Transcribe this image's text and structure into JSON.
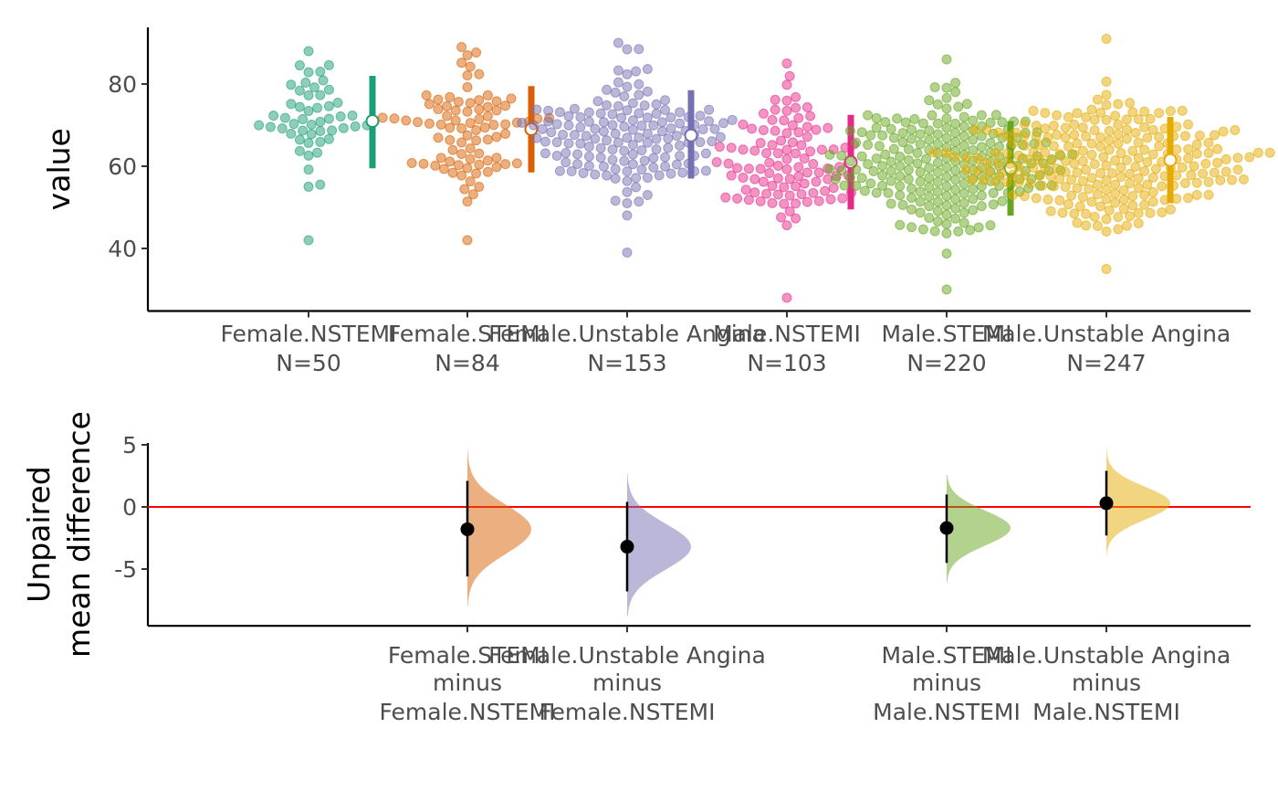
{
  "colors": {
    "groups": [
      "#1B9E77",
      "#D95F02",
      "#7570B3",
      "#E7298A",
      "#66A61E",
      "#E6AB02"
    ],
    "axis": "#000000",
    "tick_text": "#4d4d4d",
    "zero_line": "#FF0000",
    "effect_point": "#000000"
  },
  "chart_data": [
    {
      "type": "scatter",
      "subtype": "swarm-with-mean-sd",
      "ylabel": "value",
      "yticks": [
        40,
        60,
        80
      ],
      "ylim": [
        25,
        94
      ],
      "categories": [
        {
          "name": "Female.NSTEMI",
          "n_label": "N=50",
          "mean": 71,
          "sd_low": 59.5,
          "sd_high": 82,
          "min": 42,
          "max": 88
        },
        {
          "name": "Female.STEMI",
          "n_label": "N=84",
          "mean": 69,
          "sd_low": 58.5,
          "sd_high": 79.5,
          "min": 42,
          "max": 89
        },
        {
          "name": "Female.Unstable Angina",
          "n_label": "N=153",
          "mean": 67.5,
          "sd_low": 57,
          "sd_high": 78.5,
          "min": 39,
          "max": 90
        },
        {
          "name": "Male.NSTEMI",
          "n_label": "N=103",
          "mean": 61,
          "sd_low": 49.5,
          "sd_high": 72.5,
          "min": 28,
          "max": 85
        },
        {
          "name": "Male.STEMI",
          "n_label": "N=220",
          "mean": 59.5,
          "sd_low": 48,
          "sd_high": 71,
          "min": 30,
          "max": 86
        },
        {
          "name": "Male.Unstable Angina",
          "n_label": "N=247",
          "mean": 61.5,
          "sd_low": 51,
          "sd_high": 72,
          "min": 35,
          "max": 91
        }
      ]
    },
    {
      "type": "scatter",
      "subtype": "effect-size-distribution",
      "ylabel": "Unpaired mean difference",
      "ylabel_lines": [
        "Unpaired",
        "mean difference"
      ],
      "yticks": [
        -5,
        0,
        5
      ],
      "ytick_labels": [
        "-5",
        "0",
        "5"
      ],
      "ylim": [
        -9.5,
        5
      ],
      "reference_line": 0,
      "comparisons": [
        {
          "group": "Female.STEMI",
          "test": "Female.STEMI",
          "minus": "minus",
          "control": "Female.NSTEMI",
          "mean_diff": -1.8,
          "ci": [
            -5.6,
            2.1
          ],
          "dist_range": [
            -8,
            4.6
          ]
        },
        {
          "group": "Female.Unstable Angina",
          "test": "Female.Unstable Angina",
          "minus": "minus",
          "control": "Female.NSTEMI",
          "mean_diff": -3.2,
          "ci": [
            -6.8,
            0.4
          ],
          "dist_range": [
            -8.8,
            2.7
          ]
        },
        {
          "group": "Male.STEMI",
          "test": "Male.STEMI",
          "minus": "minus",
          "control": "Male.NSTEMI",
          "mean_diff": -1.7,
          "ci": [
            -4.5,
            1.0
          ],
          "dist_range": [
            -6.1,
            2.6
          ]
        },
        {
          "group": "Male.Unstable Angina",
          "test": "Male.Unstable Angina",
          "minus": "minus",
          "control": "Male.NSTEMI",
          "mean_diff": 0.3,
          "ci": [
            -2.3,
            2.9
          ],
          "dist_range": [
            -4.0,
            4.6
          ]
        }
      ]
    }
  ]
}
